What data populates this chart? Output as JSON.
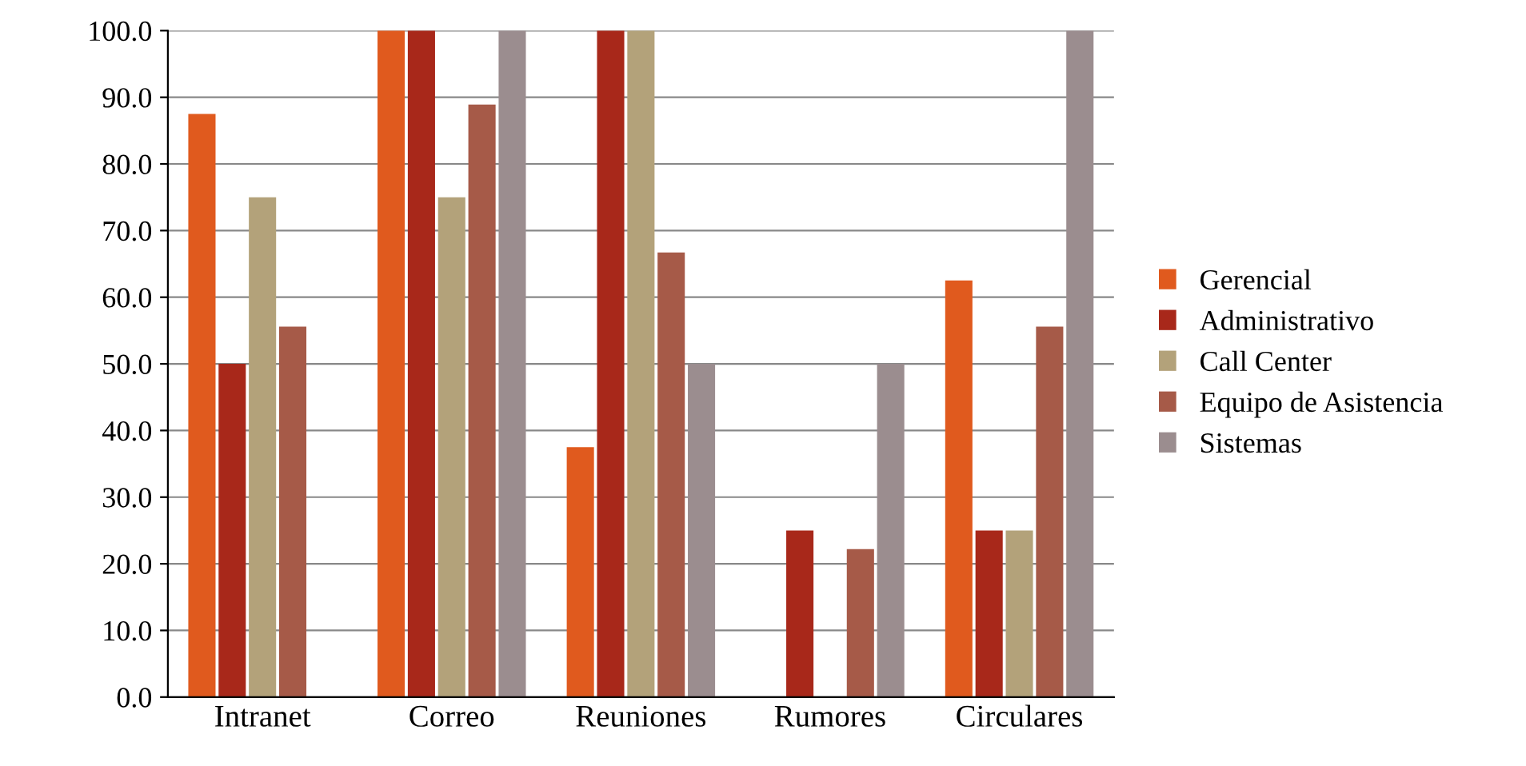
{
  "chart_data": {
    "type": "bar",
    "categories": [
      "Intranet",
      "Correo",
      "Reuniones",
      "Rumores",
      "Circulares"
    ],
    "series": [
      {
        "name": "Gerencial",
        "color": "#e05a1e",
        "values": [
          87.5,
          100,
          37.5,
          0,
          62.5
        ]
      },
      {
        "name": "Administrativo",
        "color": "#a8281a",
        "values": [
          50,
          100,
          100,
          25,
          25
        ]
      },
      {
        "name": "Call Center",
        "color": "#b3a27a",
        "values": [
          75,
          75,
          100,
          0,
          25
        ]
      },
      {
        "name": "Equipo de Asistencia",
        "color": "#a65a48",
        "values": [
          55.6,
          88.9,
          66.7,
          22.2,
          55.6
        ]
      },
      {
        "name": "Sistemas",
        "color": "#9b8d8f",
        "values": [
          0,
          100,
          50,
          50,
          100
        ]
      }
    ],
    "ylim": [
      0,
      100
    ],
    "yticks": [
      {
        "value": 0,
        "label": "0.0"
      },
      {
        "value": 10,
        "label": "10.0"
      },
      {
        "value": 20,
        "label": "20.0"
      },
      {
        "value": 30,
        "label": "30.0"
      },
      {
        "value": 40,
        "label": "40.0"
      },
      {
        "value": 50,
        "label": "50.0"
      },
      {
        "value": 60,
        "label": "60.0"
      },
      {
        "value": 70,
        "label": "70.0"
      },
      {
        "value": 80,
        "label": "80.0"
      },
      {
        "value": 90,
        "label": "90.0"
      },
      {
        "value": 100,
        "label": "100.0"
      }
    ],
    "grid": "y",
    "legend": "right"
  }
}
